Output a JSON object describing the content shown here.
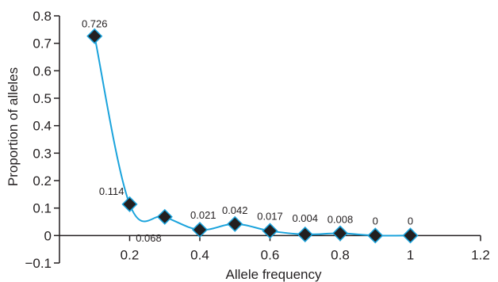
{
  "chart_data": {
    "type": "line",
    "title": "",
    "xlabel": "Allele frequency",
    "ylabel": "Proportion of alleles",
    "xlim": [
      0,
      1.2
    ],
    "ylim": [
      -0.1,
      0.8
    ],
    "x_ticks": [
      0.2,
      0.4,
      0.6,
      0.8,
      1,
      1.2
    ],
    "x_tick_labels": [
      "0.2",
      "0.4",
      "0.6",
      "0.8",
      "1",
      "1.2"
    ],
    "y_ticks": [
      -0.1,
      0,
      0.1,
      0.2,
      0.3,
      0.4,
      0.5,
      0.6,
      0.7,
      0.8
    ],
    "y_tick_labels": [
      "−0.1",
      "0",
      "0.1",
      "0.2",
      "0.3",
      "0.4",
      "0.5",
      "0.6",
      "0.7",
      "0.8"
    ],
    "grid": false,
    "legend": "none",
    "colors": {
      "line": "#1aa3dc",
      "marker_fill": "#231f20",
      "marker_stroke": "#1aa3dc",
      "axis": "#231f20"
    },
    "series": [
      {
        "x": [
          0.1,
          0.2,
          0.3,
          0.4,
          0.5,
          0.6,
          0.7,
          0.8,
          0.9,
          1.0
        ],
        "values": [
          0.726,
          0.114,
          0.068,
          0.021,
          0.042,
          0.017,
          0.004,
          0.008,
          0,
          0
        ],
        "labels": [
          "0.726",
          "0.114",
          "0.068",
          "0.021",
          "0.042",
          "0.017",
          "0.004",
          "0.008",
          "0",
          "0"
        ]
      }
    ]
  }
}
